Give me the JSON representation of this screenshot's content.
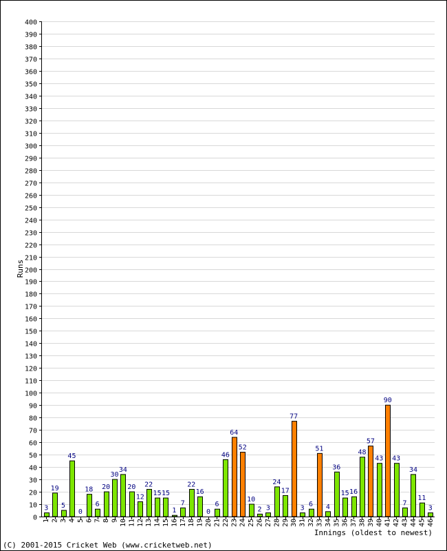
{
  "chart_data": {
    "type": "bar",
    "ylabel": "Runs",
    "xlabel": "Innings (oldest to newest)",
    "ylim": [
      0,
      400
    ],
    "ytick_step": 10,
    "grid": true,
    "categories": [
      "1",
      "2",
      "3",
      "4",
      "5",
      "6",
      "7",
      "8",
      "9",
      "10",
      "11",
      "12",
      "13",
      "14",
      "15",
      "16",
      "17",
      "18",
      "19",
      "20",
      "21",
      "22",
      "23",
      "24",
      "25",
      "26",
      "27",
      "28",
      "29",
      "30",
      "31",
      "32",
      "33",
      "34",
      "35",
      "36",
      "37",
      "38",
      "39",
      "40",
      "41",
      "42",
      "43",
      "44",
      "45",
      "46"
    ],
    "values": [
      3,
      19,
      5,
      45,
      0,
      18,
      6,
      20,
      30,
      34,
      20,
      12,
      22,
      15,
      15,
      1,
      7,
      22,
      16,
      0,
      6,
      46,
      64,
      52,
      10,
      2,
      3,
      24,
      17,
      77,
      3,
      6,
      51,
      4,
      36,
      15,
      16,
      48,
      57,
      43,
      90,
      43,
      7,
      34,
      11,
      3
    ],
    "bar_colors": {
      "under_50": "#7ee600",
      "50_plus": "#ff8000"
    },
    "label_color": "#000080"
  },
  "footer": {
    "copyright": "(C) 2001-2015 Cricket Web (www.cricketweb.net)"
  }
}
